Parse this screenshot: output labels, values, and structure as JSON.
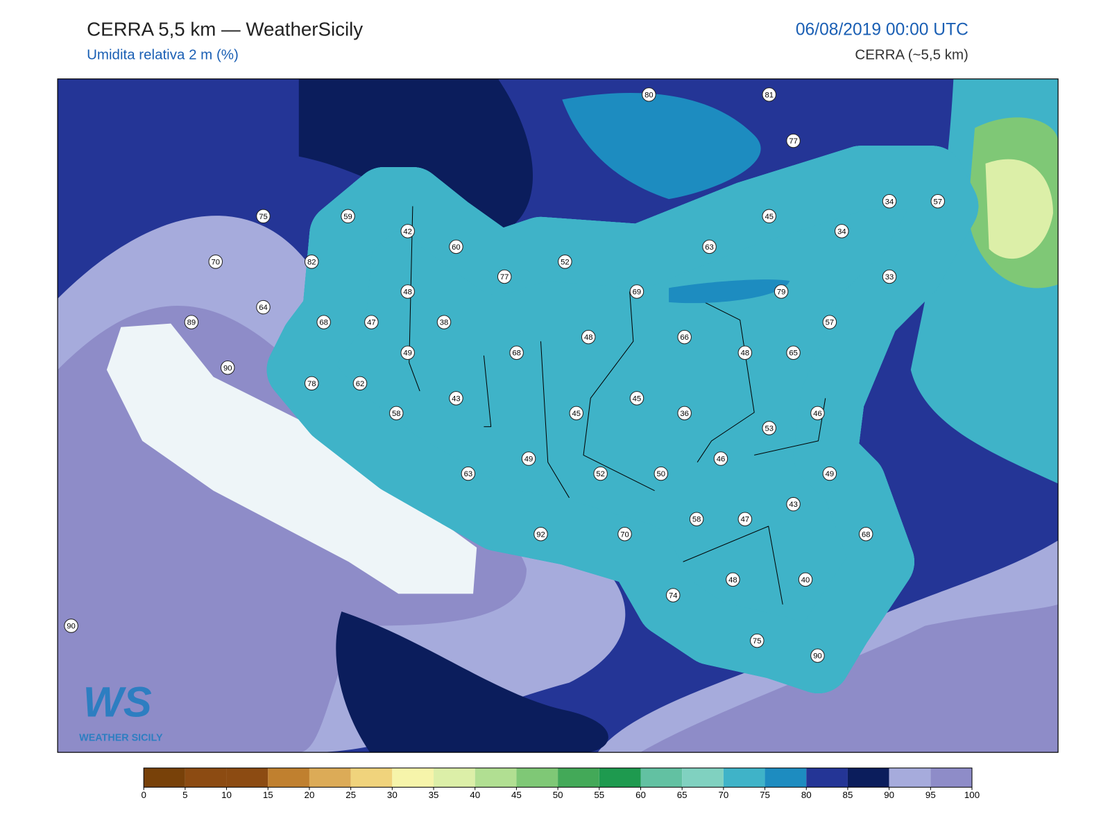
{
  "header": {
    "title": "CERRA 5,5 km — WeatherSicily",
    "subtitle": "Umidita relativa 2 m (%)",
    "datetime": "06/08/2019 00:00 UTC",
    "model": "CERRA (~5,5 km)"
  },
  "stations": [
    80,
    81,
    77,
    34,
    57,
    75,
    59,
    42,
    45,
    34,
    60,
    63,
    70,
    82,
    52,
    77,
    33,
    48,
    69,
    79,
    64,
    89,
    68,
    47,
    38,
    57,
    48,
    66,
    68,
    49,
    48,
    65,
    90,
    78,
    62,
    43,
    45,
    58,
    45,
    36,
    46,
    53,
    46,
    49,
    49,
    63,
    52,
    50,
    43,
    58,
    47,
    68,
    92,
    70,
    48,
    40,
    74,
    90,
    75,
    90
  ],
  "logo": {
    "mark": "WS",
    "name": "WEATHER SICILY"
  },
  "colorbar": {
    "ticks": [
      0,
      5,
      10,
      15,
      20,
      25,
      30,
      35,
      40,
      45,
      50,
      55,
      60,
      65,
      70,
      75,
      80,
      85,
      90,
      95,
      100
    ],
    "colors": [
      "#784109",
      "#8c4b12",
      "#8c4b12",
      "#c0802f",
      "#dcab57",
      "#f0d37c",
      "#f6f4aa",
      "#dcefa8",
      "#b1df92",
      "#7fc876",
      "#43a958",
      "#1e9a4f",
      "#62c1a2",
      "#80d1c0",
      "#3fb3c8",
      "#1d8cc0",
      "#243596",
      "#0b1d5c",
      "#a6abdc",
      "#8e8cc8"
    ]
  }
}
